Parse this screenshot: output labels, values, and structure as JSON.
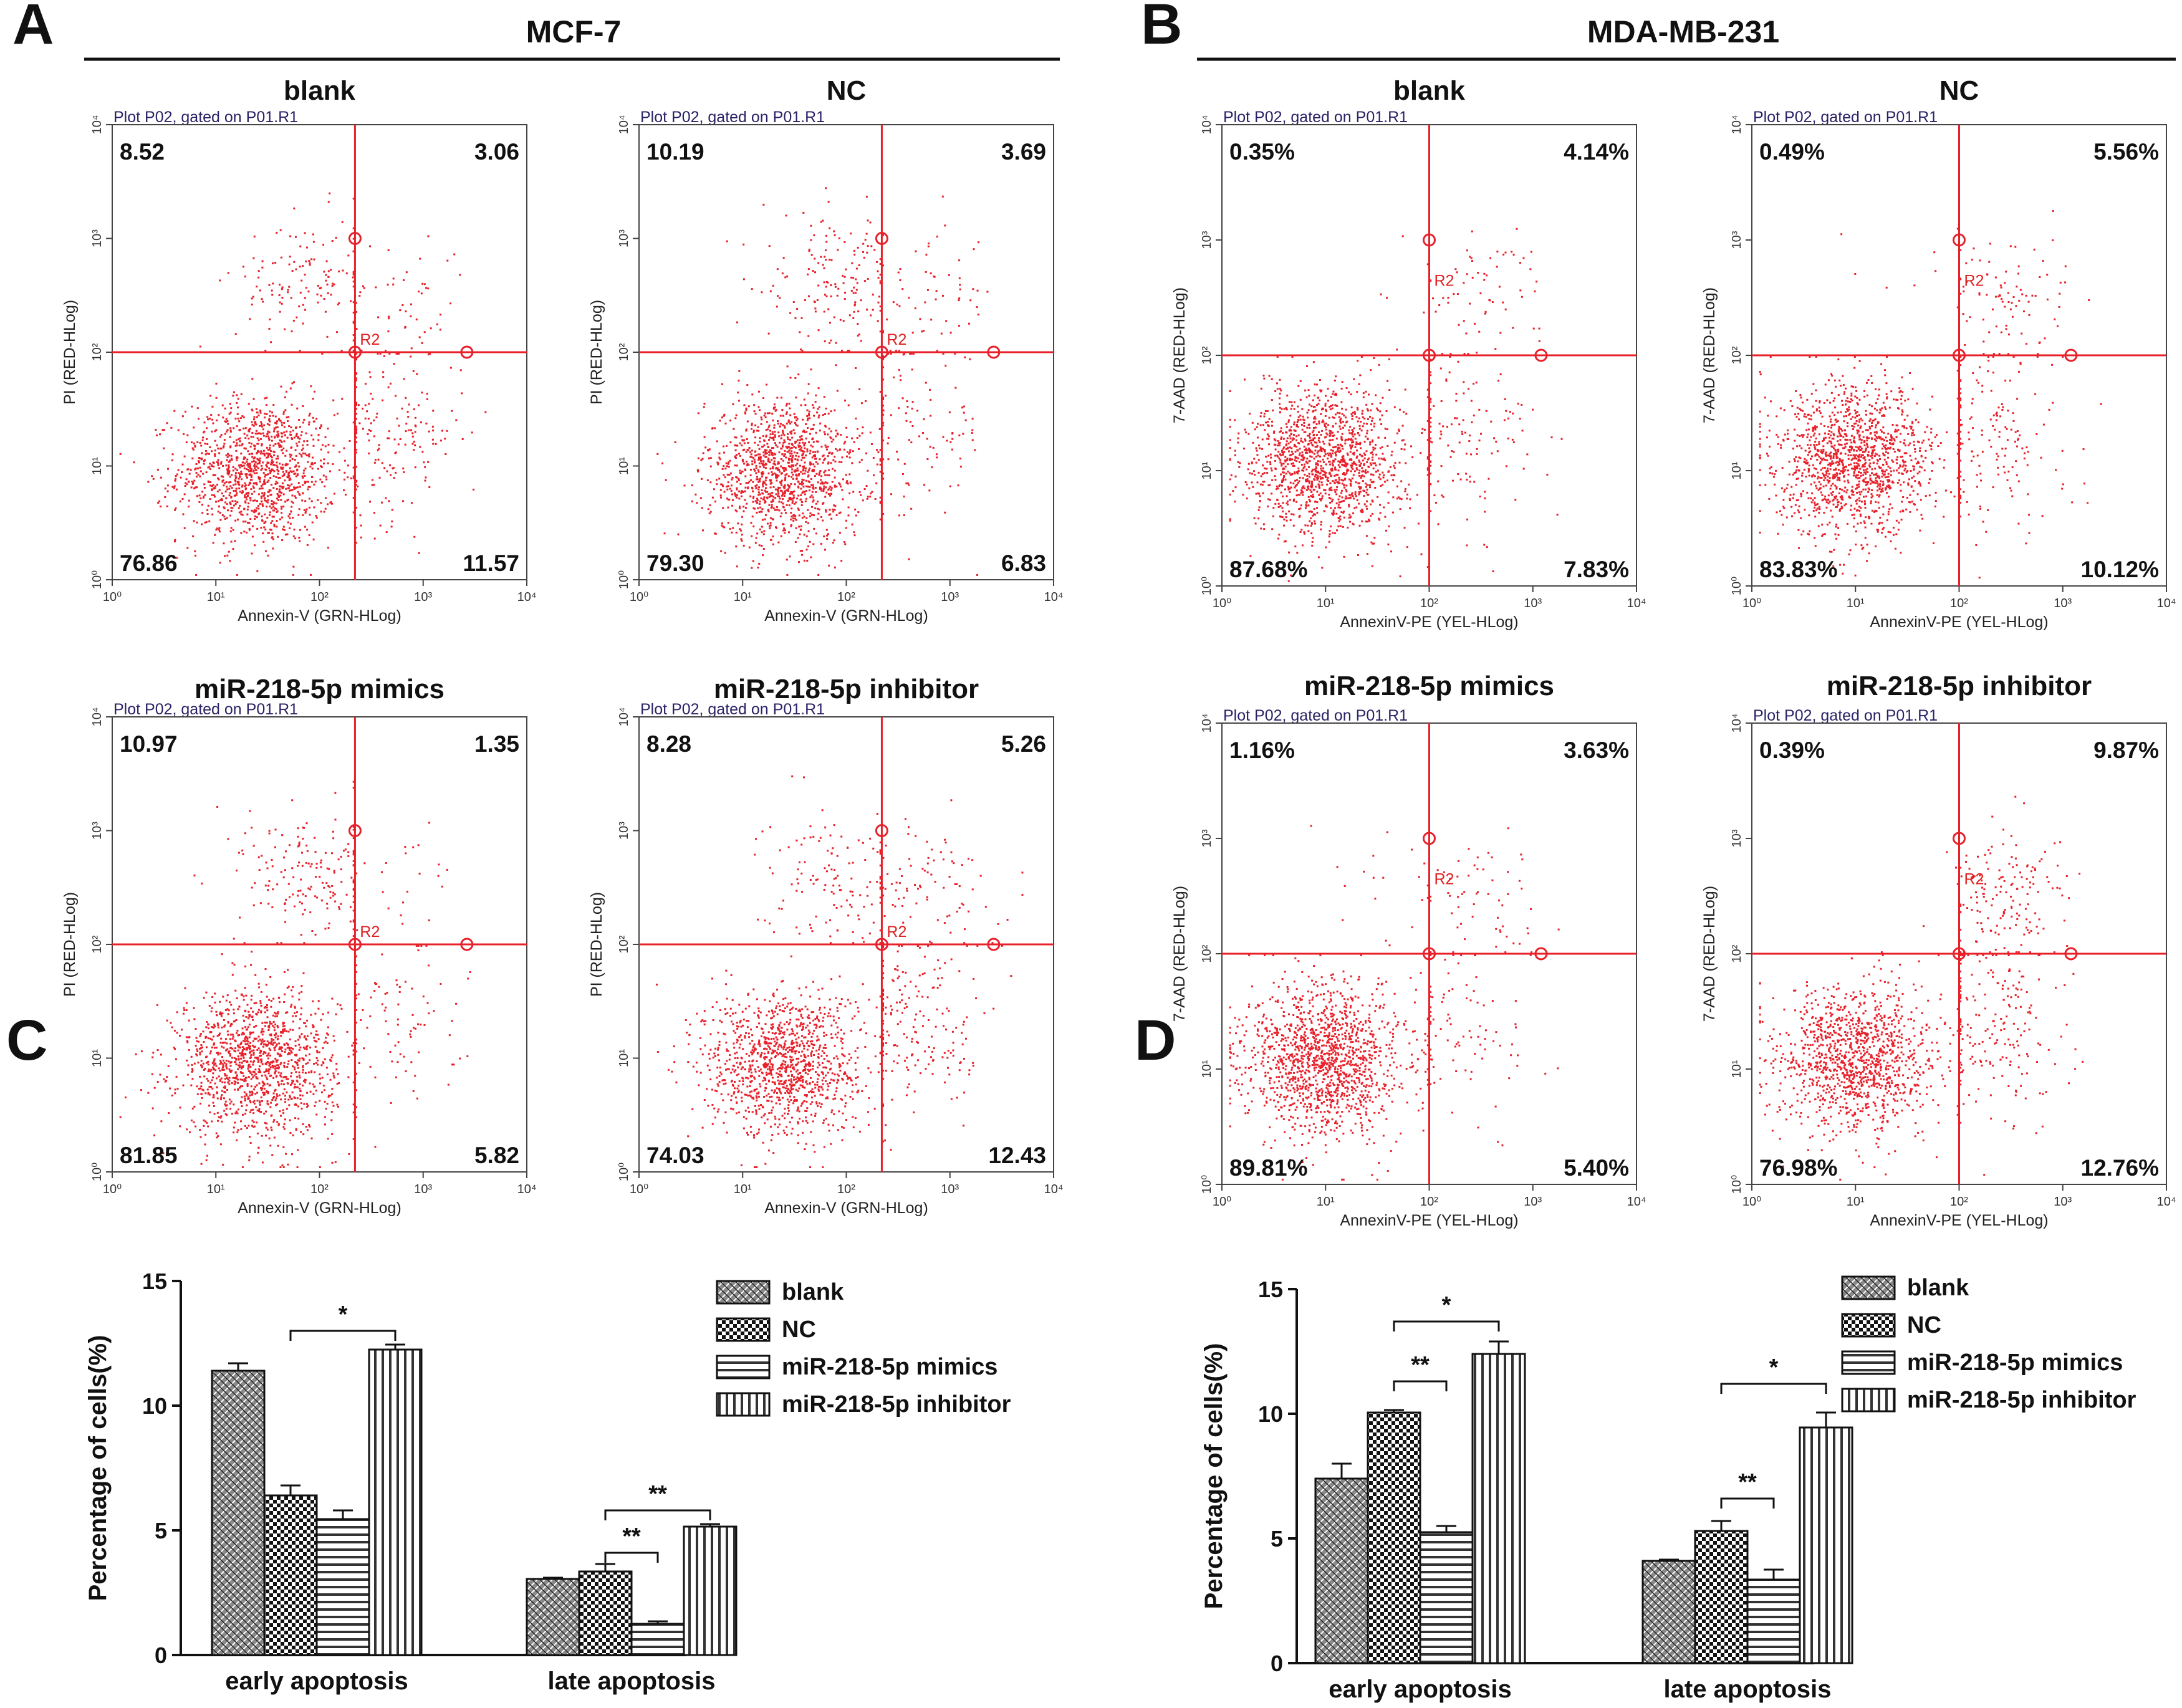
{
  "panels": {
    "A": {
      "letter": "A",
      "title": "MCF-7"
    },
    "B": {
      "letter": "B",
      "title": "MDA-MB-231"
    },
    "C": {
      "letter": "C"
    },
    "D": {
      "letter": "D"
    }
  },
  "flow_common": {
    "plot_header": "Plot P02, gated on P01.R1",
    "gate_label": "R2",
    "tick_labels": [
      "10⁰",
      "10¹",
      "10²",
      "10³",
      "10⁴"
    ]
  },
  "chart_data": [
    {
      "type": "scatter",
      "panel": "A",
      "title": "blank",
      "xlabel": "Annexin-V (GRN-HLog)",
      "ylabel": "PI (RED-HLog)",
      "xscale": "log",
      "yscale": "log",
      "xlim": [
        1,
        10000
      ],
      "ylim": [
        1,
        10000
      ],
      "gate": {
        "x": 220,
        "y": 100
      },
      "quadrants": {
        "upper_left": "8.52",
        "upper_right": "3.06",
        "lower_left": "76.86",
        "lower_right": "11.57"
      }
    },
    {
      "type": "scatter",
      "panel": "A",
      "title": "NC",
      "xlabel": "Annexin-V (GRN-HLog)",
      "ylabel": "PI (RED-HLog)",
      "xscale": "log",
      "yscale": "log",
      "xlim": [
        1,
        10000
      ],
      "ylim": [
        1,
        10000
      ],
      "gate": {
        "x": 220,
        "y": 100
      },
      "quadrants": {
        "upper_left": "10.19",
        "upper_right": "3.69",
        "lower_left": "79.30",
        "lower_right": "6.83"
      }
    },
    {
      "type": "scatter",
      "panel": "A",
      "title": "miR-218-5p mimics",
      "xlabel": "Annexin-V (GRN-HLog)",
      "ylabel": "PI (RED-HLog)",
      "xscale": "log",
      "yscale": "log",
      "xlim": [
        1,
        10000
      ],
      "ylim": [
        1,
        10000
      ],
      "gate": {
        "x": 220,
        "y": 100
      },
      "quadrants": {
        "upper_left": "10.97",
        "upper_right": "1.35",
        "lower_left": "81.85",
        "lower_right": "5.82"
      }
    },
    {
      "type": "scatter",
      "panel": "A",
      "title": "miR-218-5p inhibitor",
      "xlabel": "Annexin-V (GRN-HLog)",
      "ylabel": "PI (RED-HLog)",
      "xscale": "log",
      "yscale": "log",
      "xlim": [
        1,
        10000
      ],
      "ylim": [
        1,
        10000
      ],
      "gate": {
        "x": 220,
        "y": 100
      },
      "quadrants": {
        "upper_left": "8.28",
        "upper_right": "5.26",
        "lower_left": "74.03",
        "lower_right": "12.43"
      }
    },
    {
      "type": "scatter",
      "panel": "B",
      "title": "blank",
      "xlabel": "AnnexinV-PE (YEL-HLog)",
      "ylabel": "7-AAD (RED-HLog)",
      "xscale": "log",
      "yscale": "log",
      "xlim": [
        1,
        10000
      ],
      "ylim": [
        1,
        10000
      ],
      "gate": {
        "x": 100,
        "y": 100
      },
      "quadrants": {
        "upper_left": "0.35%",
        "upper_right": "4.14%",
        "lower_left": "87.68%",
        "lower_right": "7.83%"
      }
    },
    {
      "type": "scatter",
      "panel": "B",
      "title": "NC",
      "xlabel": "AnnexinV-PE (YEL-HLog)",
      "ylabel": "7-AAD (RED-HLog)",
      "xscale": "log",
      "yscale": "log",
      "xlim": [
        1,
        10000
      ],
      "ylim": [
        1,
        10000
      ],
      "gate": {
        "x": 100,
        "y": 100
      },
      "quadrants": {
        "upper_left": "0.49%",
        "upper_right": "5.56%",
        "lower_left": "83.83%",
        "lower_right": "10.12%"
      }
    },
    {
      "type": "scatter",
      "panel": "B",
      "title": "miR-218-5p mimics",
      "xlabel": "AnnexinV-PE (YEL-HLog)",
      "ylabel": "7-AAD (RED-HLog)",
      "xscale": "log",
      "yscale": "log",
      "xlim": [
        1,
        10000
      ],
      "ylim": [
        1,
        10000
      ],
      "gate": {
        "x": 100,
        "y": 100
      },
      "quadrants": {
        "upper_left": "1.16%",
        "upper_right": "3.63%",
        "lower_left": "89.81%",
        "lower_right": "5.40%"
      }
    },
    {
      "type": "scatter",
      "panel": "B",
      "title": "miR-218-5p inhibitor",
      "xlabel": "AnnexinV-PE (YEL-HLog)",
      "ylabel": "7-AAD (RED-HLog)",
      "xscale": "log",
      "yscale": "log",
      "xlim": [
        1,
        10000
      ],
      "ylim": [
        1,
        10000
      ],
      "gate": {
        "x": 100,
        "y": 100
      },
      "quadrants": {
        "upper_left": "0.39%",
        "upper_right": "9.87%",
        "lower_left": "76.98%",
        "lower_right": "12.76%"
      }
    },
    {
      "type": "bar",
      "panel": "C",
      "ylabel": "Percentage of cells(%)",
      "ylim": [
        0,
        15
      ],
      "yticks": [
        0,
        5,
        10,
        15
      ],
      "categories": [
        "early apoptosis",
        "late apoptosis"
      ],
      "series": [
        {
          "name": "blank",
          "values": [
            11.4,
            3.05
          ],
          "errors": [
            0.3,
            0.05
          ]
        },
        {
          "name": "NC",
          "values": [
            6.4,
            3.35
          ],
          "errors": [
            0.4,
            0.3
          ]
        },
        {
          "name": "miR-218-5p mimics",
          "values": [
            5.45,
            1.25
          ],
          "errors": [
            0.35,
            0.1
          ]
        },
        {
          "name": "miR-218-5p inhibitor",
          "values": [
            12.25,
            5.15
          ],
          "errors": [
            0.2,
            0.1
          ]
        }
      ],
      "significance": [
        {
          "label": "*",
          "category": 0,
          "from_series": 1,
          "to_series": 3,
          "y": 13.0
        },
        {
          "label": "**",
          "category": 1,
          "from_series": 1,
          "to_series": 2,
          "y": 4.1
        },
        {
          "label": "**",
          "category": 1,
          "from_series": 1,
          "to_series": 3,
          "y": 5.8
        }
      ]
    },
    {
      "type": "bar",
      "panel": "D",
      "ylabel": "Percentage of cells(%)",
      "ylim": [
        0,
        15
      ],
      "yticks": [
        0,
        5,
        10,
        15
      ],
      "categories": [
        "early apoptosis",
        "late apoptosis"
      ],
      "series": [
        {
          "name": "blank",
          "values": [
            7.4,
            4.1
          ],
          "errors": [
            0.6,
            0.05
          ]
        },
        {
          "name": "NC",
          "values": [
            10.05,
            5.3
          ],
          "errors": [
            0.1,
            0.4
          ]
        },
        {
          "name": "miR-218-5p mimics",
          "values": [
            5.25,
            3.35
          ],
          "errors": [
            0.25,
            0.4
          ]
        },
        {
          "name": "miR-218-5p inhibitor",
          "values": [
            12.4,
            9.45
          ],
          "errors": [
            0.5,
            0.6
          ]
        }
      ],
      "significance": [
        {
          "label": "*",
          "category": 0,
          "from_series": 1,
          "to_series": 3,
          "y": 13.7
        },
        {
          "label": "**",
          "category": 0,
          "from_series": 1,
          "to_series": 2,
          "y": 11.3
        },
        {
          "label": "*",
          "category": 1,
          "from_series": 1,
          "to_series": 3,
          "y": 11.2
        },
        {
          "label": "**",
          "category": 1,
          "from_series": 1,
          "to_series": 2,
          "y": 6.6
        }
      ]
    }
  ]
}
